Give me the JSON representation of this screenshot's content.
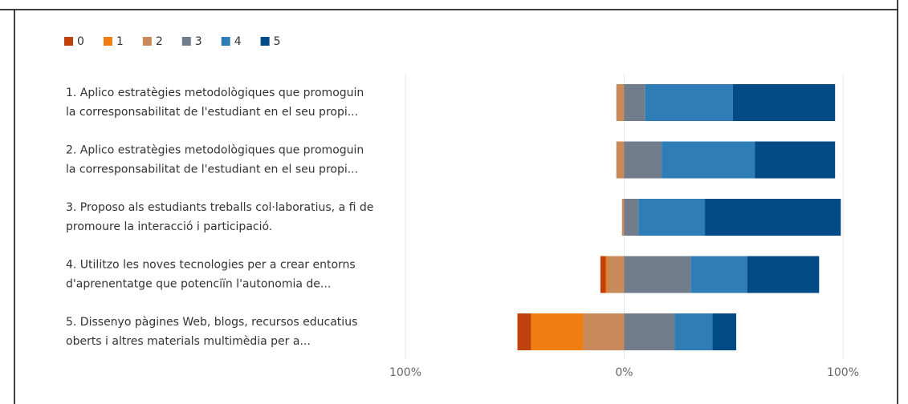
{
  "chart_data": {
    "type": "diverging_bar",
    "categories": [
      [
        "1. Aplico estratègies metodològiques que promoguin",
        "la corresponsabilitat de l'estudiant en el seu propi..."
      ],
      [
        "2. Aplico estratègies metodològiques que promoguin",
        "la corresponsabilitat de l'estudiant en el seu propi..."
      ],
      [
        "3. Proposo als estudiants treballs col·laboratius, a fi de",
        "promoure la interacció i participació."
      ],
      [
        "4. Utilitzo les noves tecnologies per a crear entorns",
        "d'aprenentatge que potenciïn l'autonomia de..."
      ],
      [
        "5. Dissenyo pàgines Web, blogs, recursos educatius",
        "oberts i altres materials multimèdia per a..."
      ]
    ],
    "series": [
      {
        "name": "0",
        "color": "#c0410b",
        "values": [
          0,
          0,
          0,
          2.5,
          6.2
        ]
      },
      {
        "name": "1",
        "color": "#f07d11",
        "values": [
          0,
          0,
          0,
          0.7,
          23.9
        ]
      },
      {
        "name": "2",
        "color": "#c98a5b",
        "values": [
          3.6,
          3.6,
          1,
          7.7,
          18.7
        ]
      },
      {
        "name": "3",
        "color": "#717c8c",
        "values": [
          9.6,
          17.1,
          6.5,
          30.4,
          23.1
        ]
      },
      {
        "name": "4",
        "color": "#2f7db6",
        "values": [
          40.1,
          42.6,
          30.4,
          25.8,
          17.2
        ]
      },
      {
        "name": "5",
        "color": "#004a86",
        "values": [
          46.7,
          36.7,
          62.1,
          32.9,
          10.9
        ]
      }
    ],
    "xlim": [
      -100,
      100
    ],
    "xticks": [
      {
        "value": -100,
        "label": "100%"
      },
      {
        "value": 0,
        "label": "0%"
      },
      {
        "value": 100,
        "label": "100%"
      }
    ],
    "grid": true
  }
}
